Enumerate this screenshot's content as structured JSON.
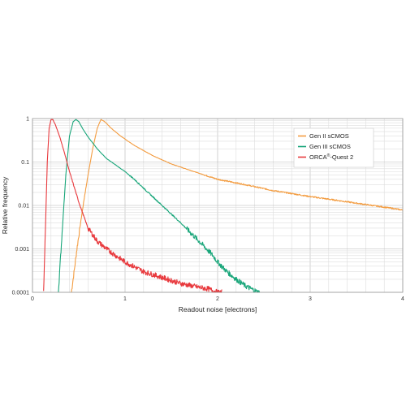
{
  "chart_data": {
    "type": "line",
    "title": "",
    "xlabel": "Readout noise [electrons]",
    "ylabel": "Relative frequency",
    "xlim": [
      0,
      4
    ],
    "ylim": [
      0.0001,
      1
    ],
    "y_scale": "log",
    "grid": true,
    "x_ticks": [
      "0",
      "1",
      "2",
      "3",
      "4"
    ],
    "y_ticks": [
      "0.0001",
      "0.001",
      "0.01",
      "0.1",
      "1"
    ],
    "legend": {
      "position": "top-right",
      "items": [
        {
          "label": "Gen II sCMOS",
          "color": "#f39c40"
        },
        {
          "label": "Gen III sCMOS",
          "color": "#19a67a"
        },
        {
          "label": "ORCA",
          "sup": "®",
          "suffix": "-Quest 2",
          "color": "#e8393d"
        }
      ]
    },
    "series": [
      {
        "name": "Gen II sCMOS",
        "color": "#f39c40",
        "x": [
          0.42,
          0.45,
          0.48,
          0.52,
          0.56,
          0.6,
          0.65,
          0.7,
          0.74,
          0.78,
          0.85,
          0.95,
          1.1,
          1.3,
          1.5,
          1.8,
          2.0,
          2.3,
          2.6,
          3.0,
          3.3,
          3.6,
          3.9,
          4.0
        ],
        "y": [
          0.0001,
          0.0003,
          0.001,
          0.004,
          0.015,
          0.05,
          0.2,
          0.6,
          0.95,
          0.85,
          0.6,
          0.4,
          0.24,
          0.14,
          0.09,
          0.055,
          0.04,
          0.03,
          0.022,
          0.016,
          0.013,
          0.0105,
          0.0085,
          0.0078
        ]
      },
      {
        "name": "Gen III sCMOS",
        "color": "#19a67a",
        "x": [
          0.28,
          0.3,
          0.33,
          0.36,
          0.4,
          0.44,
          0.47,
          0.5,
          0.55,
          0.6,
          0.7,
          0.8,
          0.9,
          1.0,
          1.1,
          1.2,
          1.4,
          1.6,
          1.8,
          1.95,
          2.0,
          2.1,
          2.2,
          2.3,
          2.4,
          2.44,
          2.46
        ],
        "y": [
          0.0001,
          0.0005,
          0.005,
          0.05,
          0.4,
          0.85,
          0.95,
          0.85,
          0.55,
          0.38,
          0.2,
          0.12,
          0.085,
          0.06,
          0.04,
          0.025,
          0.01,
          0.004,
          0.0015,
          0.0007,
          0.0005,
          0.0003,
          0.0002,
          0.00014,
          0.00011,
          0.0001,
          0.0001
        ]
      },
      {
        "name": "ORCA®-Quest 2",
        "color": "#e8393d",
        "x": [
          0.12,
          0.14,
          0.16,
          0.18,
          0.2,
          0.22,
          0.25,
          0.3,
          0.35,
          0.4,
          0.5,
          0.6,
          0.7,
          0.8,
          0.9,
          1.0,
          1.2,
          1.4,
          1.6,
          1.8,
          1.9,
          2.0,
          2.05
        ],
        "y": [
          0.0001,
          0.003,
          0.1,
          0.6,
          0.95,
          0.95,
          0.7,
          0.35,
          0.15,
          0.06,
          0.012,
          0.003,
          0.0015,
          0.001,
          0.0007,
          0.0005,
          0.0003,
          0.00022,
          0.00016,
          0.00013,
          0.00012,
          0.0001,
          0.0001
        ]
      }
    ]
  }
}
